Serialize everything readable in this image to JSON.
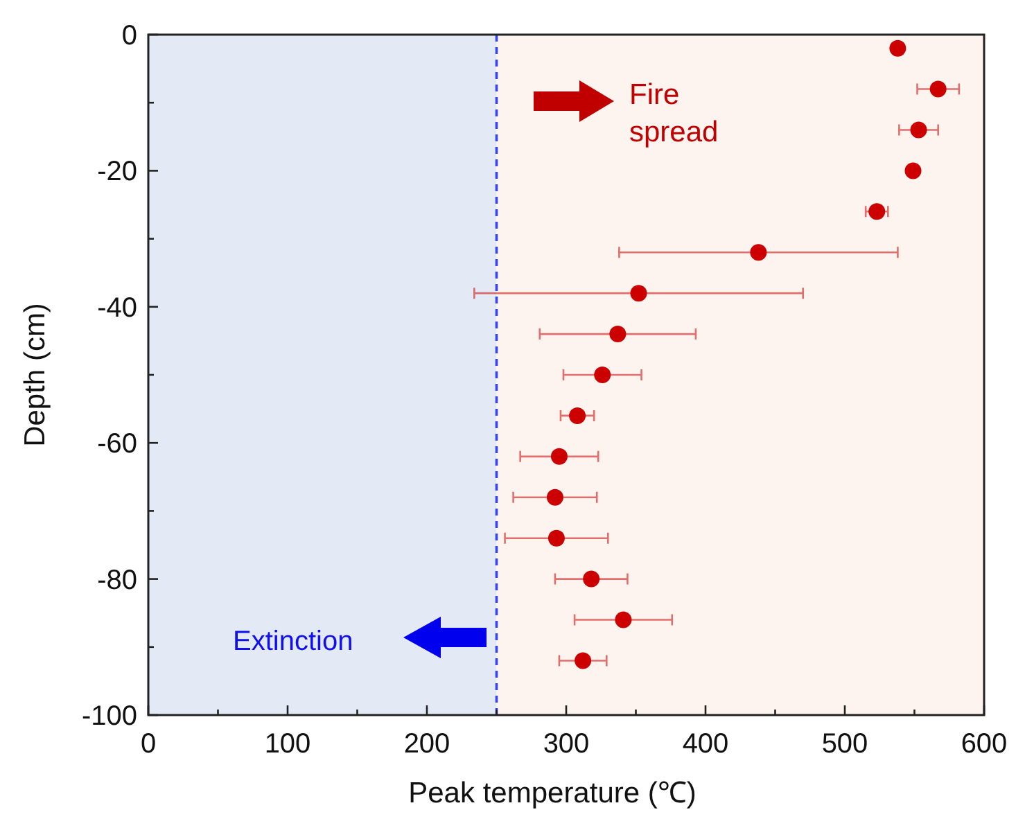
{
  "chart_data": {
    "type": "scatter",
    "xlabel": "Peak temperature (℃)",
    "ylabel": "Depth (cm)",
    "xlim": [
      0,
      600
    ],
    "xticks": [
      0,
      {
        "value": 50,
        "label": null
      },
      100,
      {
        "value": 150,
        "label": null
      },
      200,
      {
        "value": 250,
        "label": null
      },
      300,
      {
        "value": 350,
        "label": null
      },
      400,
      {
        "value": 450,
        "label": null
      },
      500,
      {
        "value": 550,
        "label": null
      },
      600
    ],
    "ylim": [
      -100,
      0
    ],
    "yticks": [
      -100,
      {
        "value": -90,
        "label": null
      },
      -80,
      {
        "value": -70,
        "label": null
      },
      -60,
      {
        "value": -50,
        "label": null
      },
      -40,
      {
        "value": -30,
        "label": null
      },
      -20,
      {
        "value": -10,
        "label": null
      },
      0
    ],
    "grid": false,
    "marker": "circle",
    "series": [
      {
        "color": "#cc0000",
        "x": [
          538,
          567,
          553,
          549,
          523,
          438,
          352,
          337,
          326,
          308,
          295,
          292,
          293,
          318,
          341,
          312
        ],
        "values": [
          -2,
          -8,
          -14,
          -20,
          -26,
          -32,
          -38,
          -44,
          -50,
          -56,
          -62,
          -68,
          -74,
          -80,
          -86,
          -92
        ],
        "xerrors": [
          null,
          15,
          14,
          null,
          8,
          100,
          118,
          56,
          28,
          12,
          28,
          30,
          37,
          26,
          35,
          17
        ]
      }
    ],
    "bands": [
      {
        "axis": "x",
        "from": 0,
        "to": 250,
        "color": "#e4eaf5"
      },
      {
        "axis": "x",
        "from": 250,
        "to": 600,
        "color": "#fdf4ef"
      }
    ],
    "ref_lines": [
      {
        "axis": "x",
        "value": 250,
        "color": "#3344ff",
        "line_style": "dashed"
      }
    ],
    "annotations": [
      "Fire spread",
      "Extinction"
    ]
  }
}
